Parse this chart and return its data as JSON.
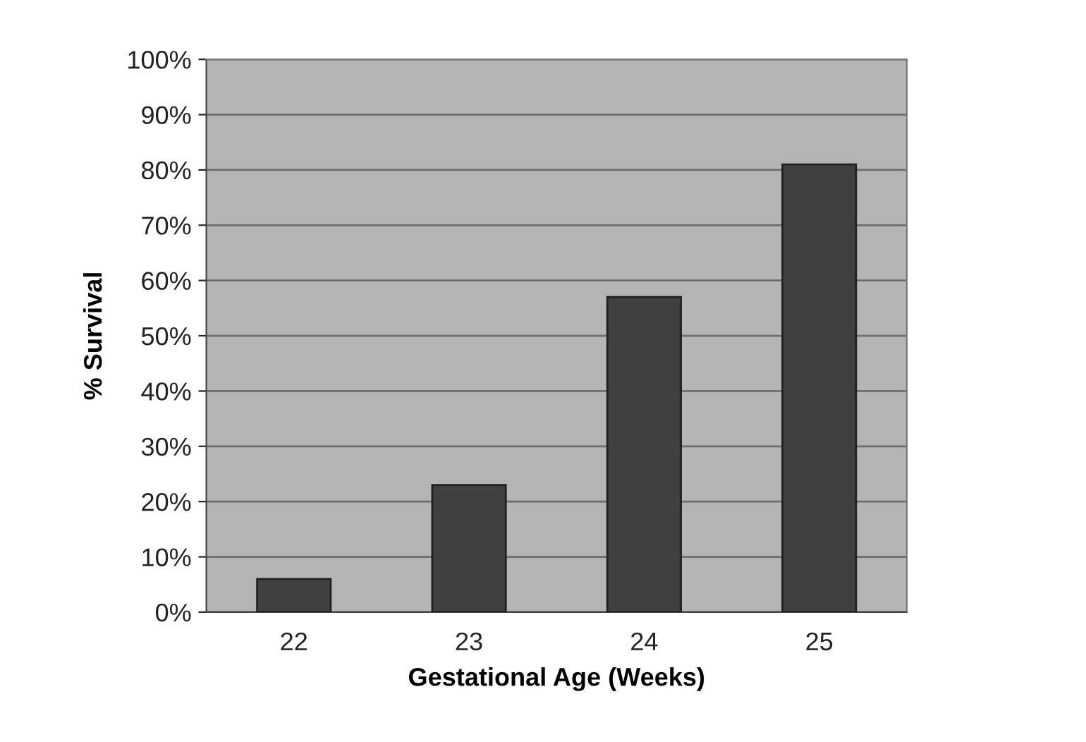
{
  "chart_data": {
    "type": "bar",
    "xlabel": "Gestational Age (Weeks)",
    "ylabel": "% Survival",
    "categories": [
      "22",
      "23",
      "24",
      "25"
    ],
    "values": [
      6,
      23,
      57,
      81
    ],
    "color": "#404040",
    "ylim": [
      0,
      100
    ],
    "yticks": [
      {
        "value": 0,
        "label": "0%"
      },
      {
        "value": 10,
        "label": "10%"
      },
      {
        "value": 20,
        "label": "20%"
      },
      {
        "value": 30,
        "label": "30%"
      },
      {
        "value": 40,
        "label": "40%"
      },
      {
        "value": 50,
        "label": "50%"
      },
      {
        "value": 60,
        "label": "60%"
      },
      {
        "value": 70,
        "label": "70%"
      },
      {
        "value": 80,
        "label": "80%"
      },
      {
        "value": 90,
        "label": "90%"
      },
      {
        "value": 100,
        "label": "100%"
      }
    ],
    "grid": "y",
    "legend": false
  }
}
